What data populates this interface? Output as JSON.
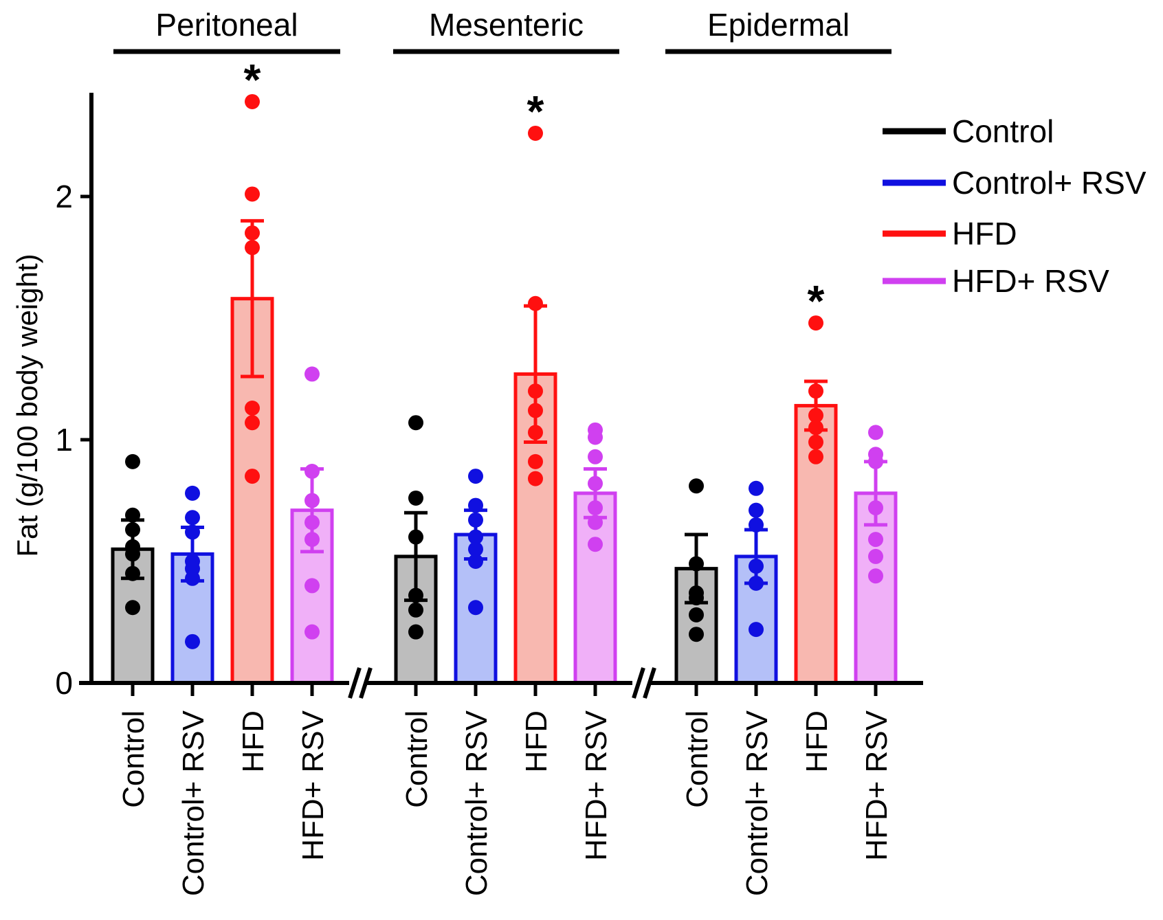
{
  "chart_data": {
    "type": "bar",
    "title": "",
    "xlabel": "",
    "ylabel": "Fat (g/100 body weight)",
    "ylim": [
      0,
      2.4
    ],
    "yticks": [
      0,
      1,
      2
    ],
    "grid": false,
    "legend_position": "top-right",
    "axis_break_symbol": "//",
    "groups": [
      "Peritoneal",
      "Mesenteric",
      "Epidermal"
    ],
    "categories": [
      "Control",
      "Control+ RSV",
      "HFD",
      "HFD+ RSV"
    ],
    "series": [
      {
        "name": "Control",
        "color": "#000000",
        "fill": "#bdbdbd",
        "means": [
          0.55,
          0.52,
          0.47
        ],
        "sem": [
          0.12,
          0.18,
          0.14
        ],
        "points": [
          [
            0.91,
            0.69,
            0.63,
            0.56,
            0.53,
            0.45,
            0.31
          ],
          [
            1.07,
            0.76,
            0.6,
            0.36,
            0.3,
            0.21
          ],
          [
            0.81,
            0.49,
            0.37,
            0.35,
            0.28,
            0.2
          ]
        ]
      },
      {
        "name": "Control+ RSV",
        "color": "#1010e0",
        "fill": "#b4c0f8",
        "means": [
          0.53,
          0.61,
          0.52
        ],
        "sem": [
          0.11,
          0.1,
          0.11
        ],
        "points": [
          [
            0.78,
            0.68,
            0.62,
            0.5,
            0.47,
            0.43,
            0.17
          ],
          [
            0.85,
            0.73,
            0.67,
            0.6,
            0.55,
            0.5,
            0.31
          ],
          [
            0.8,
            0.71,
            0.65,
            0.48,
            0.41,
            0.22
          ]
        ]
      },
      {
        "name": "HFD",
        "color": "#ff1010",
        "fill": "#f8b8b0",
        "means": [
          1.58,
          1.27,
          1.14
        ],
        "sem": [
          0.32,
          0.28,
          0.1
        ],
        "points": [
          [
            2.39,
            2.01,
            1.85,
            1.79,
            1.13,
            1.07,
            0.85
          ],
          [
            2.26,
            1.56,
            1.2,
            1.12,
            1.03,
            0.91,
            0.84
          ],
          [
            1.48,
            1.2,
            1.1,
            1.05,
            0.99,
            0.93
          ]
        ]
      },
      {
        "name": "HFD+ RSV",
        "color": "#d040f0",
        "fill": "#f0b0f8",
        "means": [
          0.71,
          0.78,
          0.78
        ],
        "sem": [
          0.17,
          0.1,
          0.13
        ],
        "points": [
          [
            1.27,
            0.87,
            0.75,
            0.66,
            0.59,
            0.4,
            0.21
          ],
          [
            1.04,
            1.01,
            0.93,
            0.82,
            0.72,
            0.66,
            0.57
          ],
          [
            1.03,
            0.94,
            0.91,
            0.72,
            0.59,
            0.52,
            0.44
          ]
        ]
      }
    ],
    "annotations": [
      {
        "text": "*",
        "group": "Peritoneal",
        "category": "HFD"
      },
      {
        "text": "*",
        "group": "Mesenteric",
        "category": "HFD"
      },
      {
        "text": "*",
        "group": "Epidermal",
        "category": "HFD"
      }
    ]
  }
}
